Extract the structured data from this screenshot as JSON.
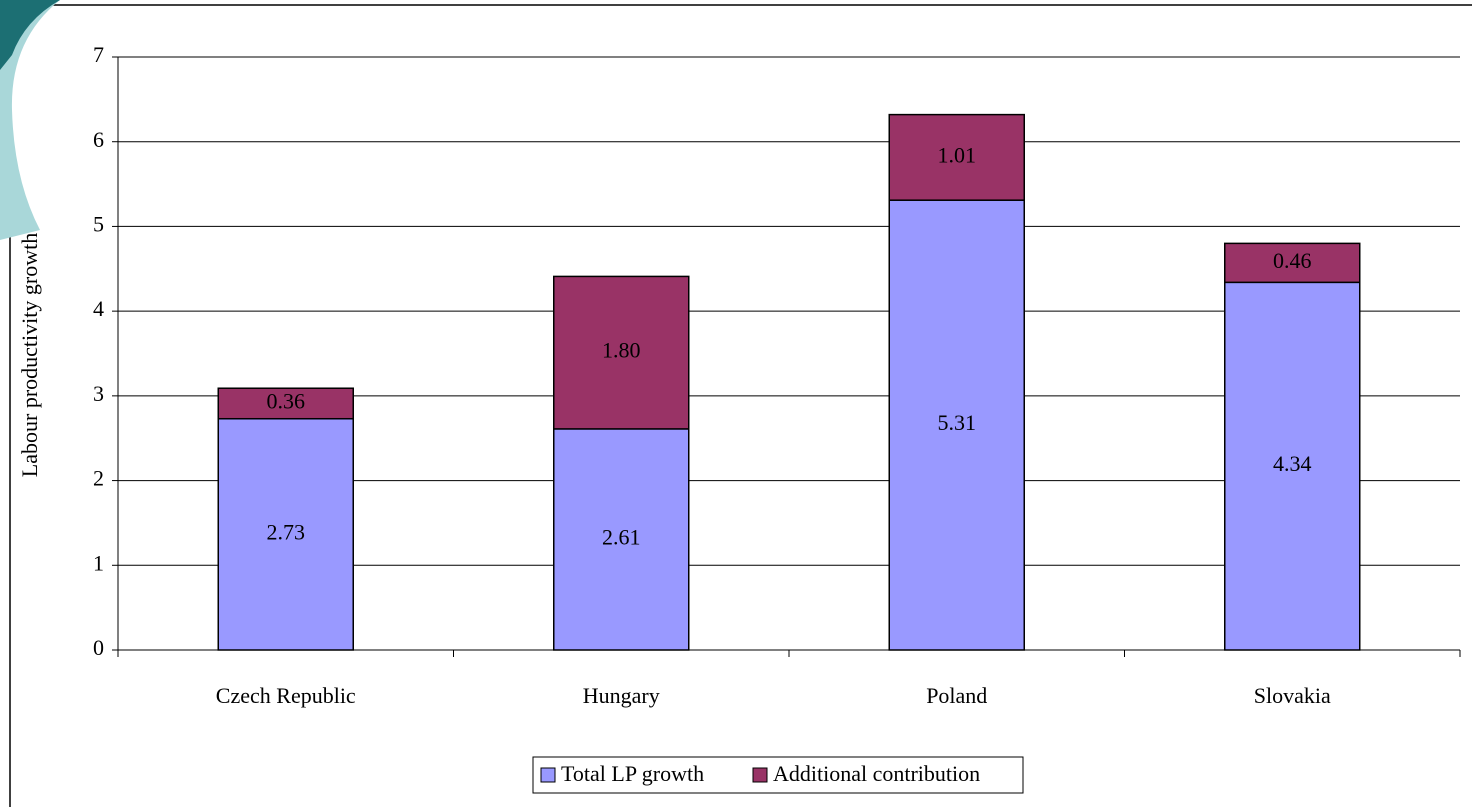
{
  "chart_data": {
    "type": "bar",
    "stacked": true,
    "y_label": "Labour productivity growth",
    "categories": [
      "Czech Republic",
      "Hungary",
      "Poland",
      "Slovakia"
    ],
    "series": [
      {
        "name": "Total LP growth",
        "color": "#9999ff",
        "values": [
          2.73,
          2.61,
          5.31,
          4.34
        ],
        "value_labels": [
          "2.73",
          "2.61",
          "5.31",
          "4.34"
        ]
      },
      {
        "name": "Additional contribution",
        "color": "#993366",
        "values": [
          0.36,
          1.8,
          1.01,
          0.46
        ],
        "value_labels": [
          "0.36",
          "1.80",
          "1.01",
          "0.46"
        ]
      }
    ],
    "ylim": [
      0,
      7
    ],
    "yticks": [
      0,
      1,
      2,
      3,
      4,
      5,
      6,
      7
    ],
    "grid": true,
    "legend": "bottom"
  }
}
